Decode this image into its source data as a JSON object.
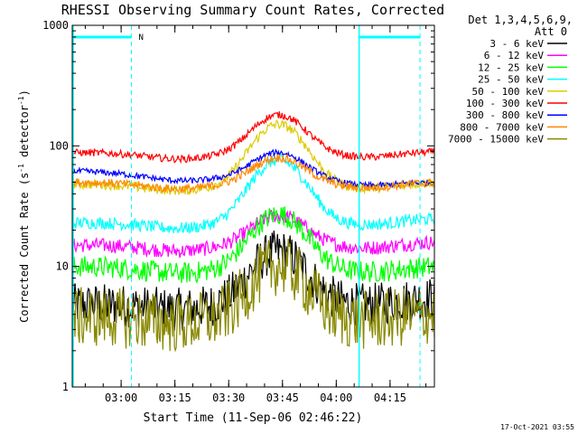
{
  "chart_data": {
    "type": "line",
    "title": "RHESSI Observing Summary Count Rates, Corrected",
    "xlabel": "Start Time (11-Sep-06 02:46:22)",
    "ylabel_main": "Corrected Count Rate (s",
    "ylabel_sup1": "-1",
    "ylabel_mid": " detector",
    "ylabel_sup2": "-1",
    "ylabel_end": ")",
    "yscale": "log",
    "ylim": [
      1,
      1000
    ],
    "xlim_minutes": [
      0,
      101
    ],
    "ytick_labels": [
      "1",
      "10",
      "100",
      "1000"
    ],
    "xtick_labels": [
      "03:00",
      "03:15",
      "03:30",
      "03:45",
      "04:00",
      "04:15"
    ],
    "xtick_minutes": [
      13.63,
      28.63,
      43.63,
      58.63,
      73.63,
      88.63
    ],
    "legend_header": [
      "Det 1,3,4,5,6,9,",
      "Att 0"
    ],
    "series": [
      {
        "name": "3 - 6 keV",
        "color": "#000000",
        "base": 4.8,
        "peak": 13,
        "tail": 5.5,
        "noise": 0.18
      },
      {
        "name": "6 - 12 keV",
        "color": "#ff00ff",
        "base": 15,
        "peak": 26,
        "tail": 16,
        "noise": 0.06
      },
      {
        "name": "12 - 25 keV",
        "color": "#00ff00",
        "base": 10,
        "peak": 27,
        "tail": 10,
        "noise": 0.09
      },
      {
        "name": "25 - 50 keV",
        "color": "#00ffff",
        "base": 23,
        "peak": 75,
        "tail": 25,
        "noise": 0.05
      },
      {
        "name": "50 - 100 keV",
        "color": "#ddcc00",
        "base": 48,
        "peak": 150,
        "tail": 50,
        "noise": 0.04
      },
      {
        "name": "100 - 300 keV",
        "color": "#ff0000",
        "base": 88,
        "peak": 180,
        "tail": 90,
        "noise": 0.03
      },
      {
        "name": "300 - 800 keV",
        "color": "#0000ff",
        "base": 62,
        "peak": 95,
        "tail": 50,
        "noise": 0.025
      },
      {
        "name": "800 - 7000 keV",
        "color": "#ff8800",
        "base": 50,
        "peak": 80,
        "tail": 50,
        "noise": 0.035
      },
      {
        "name": "7000 - 15000 keV",
        "color": "#888800",
        "base": 3.8,
        "peak": 10,
        "tail": 4,
        "noise": 0.25
      }
    ],
    "annotations": {
      "night_bar_label": "N",
      "bar_color": "#00ffff"
    },
    "timestamp": "17-Oct-2021 03:55"
  }
}
